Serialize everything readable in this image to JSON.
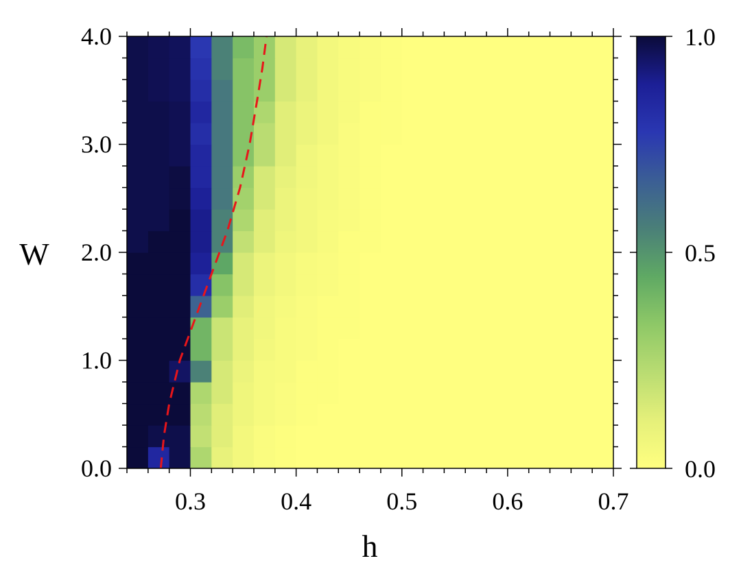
{
  "chart_data": {
    "type": "heatmap",
    "xlabel": "h",
    "ylabel": "W",
    "xlim": [
      0.24,
      0.7
    ],
    "ylim": [
      0.0,
      4.0
    ],
    "x_bin_start": 0.24,
    "x_bin_width": 0.02,
    "y_bin_start": 0.0,
    "y_bin_width": 0.2,
    "x_ticks": [
      {
        "value": 0.3,
        "label": "0.3"
      },
      {
        "value": 0.4,
        "label": "0.4"
      },
      {
        "value": 0.5,
        "label": "0.5"
      },
      {
        "value": 0.6,
        "label": "0.6"
      },
      {
        "value": 0.7,
        "label": "0.7"
      }
    ],
    "y_ticks": [
      {
        "value": 0.0,
        "label": "0.0"
      },
      {
        "value": 1.0,
        "label": "1.0"
      },
      {
        "value": 2.0,
        "label": "2.0"
      },
      {
        "value": 3.0,
        "label": "3.0"
      },
      {
        "value": 4.0,
        "label": "4.0"
      }
    ],
    "colorbar": {
      "range": [
        0.0,
        1.0
      ],
      "ticks": [
        {
          "value": 0.0,
          "label": "0.0"
        },
        {
          "value": 0.5,
          "label": "0.5"
        },
        {
          "value": 1.0,
          "label": "1.0"
        }
      ],
      "colormap": [
        "#ffff80",
        "#e5f07a",
        "#b9dc72",
        "#8ec867",
        "#5fa964",
        "#4a7f78",
        "#3b5e95",
        "#2a37b2",
        "#1c1f96",
        "#0b0b3a"
      ]
    },
    "critical_line": {
      "color": "#e8151a",
      "style": "dashed",
      "points": [
        {
          "h": 0.272,
          "W": 0.0
        },
        {
          "h": 0.275,
          "W": 0.3
        },
        {
          "h": 0.28,
          "W": 0.6
        },
        {
          "h": 0.29,
          "W": 1.0
        },
        {
          "h": 0.305,
          "W": 1.4
        },
        {
          "h": 0.32,
          "W": 1.8
        },
        {
          "h": 0.335,
          "W": 2.2
        },
        {
          "h": 0.347,
          "W": 2.6
        },
        {
          "h": 0.356,
          "W": 3.0
        },
        {
          "h": 0.363,
          "W": 3.4
        },
        {
          "h": 0.368,
          "W": 3.7
        },
        {
          "h": 0.372,
          "W": 4.0
        }
      ]
    },
    "values": [
      [
        1.0,
        0.85,
        0.98,
        0.25,
        0.1,
        0.05,
        0.02,
        0.01,
        0.0,
        0.0,
        0.0,
        0.0,
        0.0,
        0.0,
        0.0,
        0.0,
        0.0,
        0.0,
        0.0,
        0.0,
        0.0,
        0.0,
        0.0
      ],
      [
        1.0,
        0.98,
        0.98,
        0.2,
        0.12,
        0.05,
        0.02,
        0.01,
        0.0,
        0.0,
        0.0,
        0.0,
        0.0,
        0.0,
        0.0,
        0.0,
        0.0,
        0.0,
        0.0,
        0.0,
        0.0,
        0.0,
        0.0
      ],
      [
        1.0,
        1.0,
        1.0,
        0.22,
        0.12,
        0.07,
        0.04,
        0.02,
        0.01,
        0.0,
        0.0,
        0.0,
        0.0,
        0.0,
        0.0,
        0.0,
        0.0,
        0.0,
        0.0,
        0.0,
        0.0,
        0.0,
        0.0
      ],
      [
        1.0,
        1.0,
        1.0,
        0.25,
        0.15,
        0.07,
        0.04,
        0.02,
        0.01,
        0.01,
        0.0,
        0.0,
        0.0,
        0.0,
        0.0,
        0.0,
        0.0,
        0.0,
        0.0,
        0.0,
        0.0,
        0.0,
        0.0
      ],
      [
        1.0,
        1.0,
        0.95,
        0.55,
        0.15,
        0.08,
        0.04,
        0.03,
        0.01,
        0.01,
        0.0,
        0.0,
        0.0,
        0.0,
        0.0,
        0.0,
        0.0,
        0.0,
        0.0,
        0.0,
        0.0,
        0.0,
        0.0
      ],
      [
        1.0,
        1.0,
        1.0,
        0.4,
        0.18,
        0.1,
        0.05,
        0.03,
        0.02,
        0.01,
        0.0,
        0.0,
        0.0,
        0.0,
        0.0,
        0.0,
        0.0,
        0.0,
        0.0,
        0.0,
        0.0,
        0.0,
        0.0
      ],
      [
        1.0,
        1.0,
        1.0,
        0.4,
        0.18,
        0.1,
        0.06,
        0.03,
        0.02,
        0.01,
        0.01,
        0.0,
        0.0,
        0.0,
        0.0,
        0.0,
        0.0,
        0.0,
        0.0,
        0.0,
        0.0,
        0.0,
        0.0
      ],
      [
        1.0,
        1.0,
        1.0,
        0.65,
        0.3,
        0.12,
        0.06,
        0.04,
        0.02,
        0.01,
        0.01,
        0.0,
        0.0,
        0.0,
        0.0,
        0.0,
        0.0,
        0.0,
        0.0,
        0.0,
        0.0,
        0.0,
        0.0
      ],
      [
        1.0,
        1.0,
        1.0,
        0.82,
        0.35,
        0.15,
        0.08,
        0.05,
        0.03,
        0.02,
        0.01,
        0.0,
        0.0,
        0.0,
        0.0,
        0.0,
        0.0,
        0.0,
        0.0,
        0.0,
        0.0,
        0.0,
        0.0
      ],
      [
        1.0,
        1.0,
        1.0,
        0.88,
        0.45,
        0.15,
        0.08,
        0.05,
        0.03,
        0.02,
        0.01,
        0.0,
        0.0,
        0.0,
        0.0,
        0.0,
        0.0,
        0.0,
        0.0,
        0.0,
        0.0,
        0.0,
        0.0
      ],
      [
        0.98,
        1.0,
        1.0,
        0.9,
        0.55,
        0.2,
        0.12,
        0.07,
        0.05,
        0.03,
        0.01,
        0.01,
        0.0,
        0.0,
        0.0,
        0.0,
        0.0,
        0.0,
        0.0,
        0.0,
        0.0,
        0.0,
        0.0
      ],
      [
        0.98,
        0.98,
        1.0,
        0.9,
        0.55,
        0.25,
        0.12,
        0.08,
        0.05,
        0.03,
        0.02,
        0.01,
        0.0,
        0.0,
        0.0,
        0.0,
        0.0,
        0.0,
        0.0,
        0.0,
        0.0,
        0.0,
        0.0
      ],
      [
        0.98,
        0.98,
        0.99,
        0.88,
        0.58,
        0.28,
        0.15,
        0.08,
        0.05,
        0.04,
        0.02,
        0.01,
        0.0,
        0.0,
        0.0,
        0.0,
        0.0,
        0.0,
        0.0,
        0.0,
        0.0,
        0.0,
        0.0
      ],
      [
        0.98,
        0.98,
        0.99,
        0.85,
        0.58,
        0.3,
        0.15,
        0.1,
        0.06,
        0.04,
        0.02,
        0.01,
        0.0,
        0.0,
        0.0,
        0.0,
        0.0,
        0.0,
        0.0,
        0.0,
        0.0,
        0.0,
        0.0
      ],
      [
        0.98,
        0.98,
        0.97,
        0.85,
        0.58,
        0.35,
        0.22,
        0.12,
        0.06,
        0.04,
        0.02,
        0.01,
        0.0,
        0.0,
        0.0,
        0.0,
        0.0,
        0.0,
        0.0,
        0.0,
        0.0,
        0.0,
        0.0
      ],
      [
        0.98,
        0.98,
        0.97,
        0.82,
        0.58,
        0.35,
        0.22,
        0.12,
        0.08,
        0.05,
        0.02,
        0.01,
        0.01,
        0.0,
        0.0,
        0.0,
        0.0,
        0.0,
        0.0,
        0.0,
        0.0,
        0.0,
        0.0
      ],
      [
        0.98,
        0.98,
        0.97,
        0.85,
        0.58,
        0.35,
        0.25,
        0.12,
        0.08,
        0.05,
        0.03,
        0.01,
        0.01,
        0.0,
        0.0,
        0.0,
        0.0,
        0.0,
        0.0,
        0.0,
        0.0,
        0.0,
        0.0
      ],
      [
        0.98,
        0.97,
        0.96,
        0.82,
        0.58,
        0.35,
        0.3,
        0.15,
        0.1,
        0.05,
        0.03,
        0.02,
        0.01,
        0.0,
        0.0,
        0.0,
        0.0,
        0.0,
        0.0,
        0.0,
        0.0,
        0.0,
        0.0
      ],
      [
        0.98,
        0.97,
        0.96,
        0.8,
        0.55,
        0.35,
        0.3,
        0.15,
        0.1,
        0.05,
        0.03,
        0.02,
        0.01,
        0.0,
        0.0,
        0.0,
        0.0,
        0.0,
        0.0,
        0.0,
        0.0,
        0.0,
        0.0
      ],
      [
        0.98,
        0.97,
        0.96,
        0.78,
        0.55,
        0.38,
        0.3,
        0.15,
        0.1,
        0.05,
        0.03,
        0.02,
        0.01,
        0.0,
        0.0,
        0.0,
        0.0,
        0.0,
        0.0,
        0.0,
        0.0,
        0.0,
        0.0
      ]
    ]
  }
}
